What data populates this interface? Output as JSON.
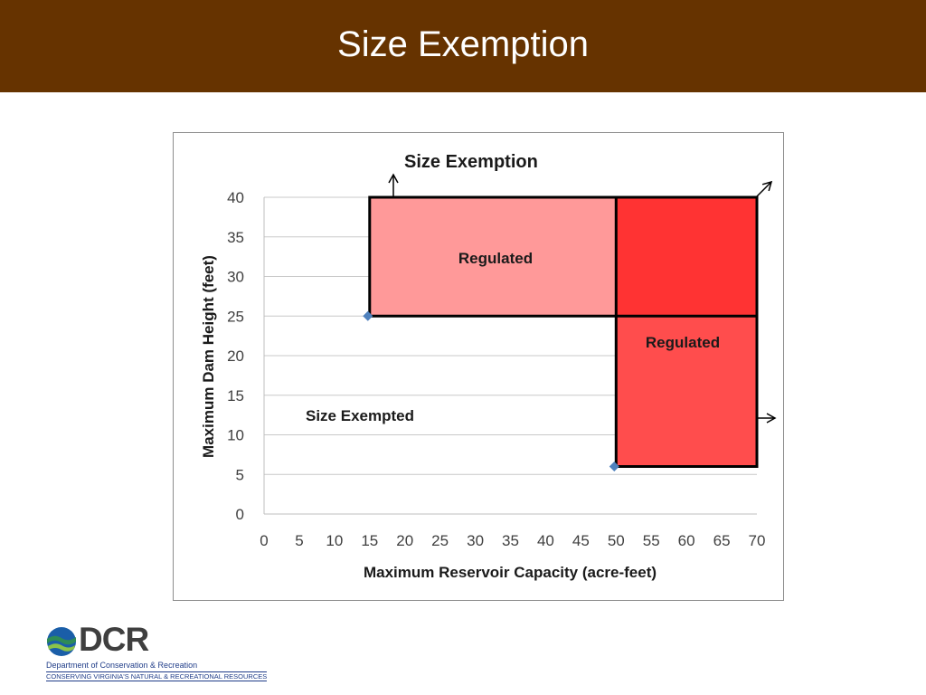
{
  "slide": {
    "title": "Size Exemption"
  },
  "chart_data": {
    "type": "scatter",
    "title": "Size Exemption",
    "xlabel": "Maximum Reservoir Capacity (acre-feet)",
    "ylabel": "Maximum Dam Height (feet)",
    "xlim": [
      0,
      70
    ],
    "ylim": [
      0,
      40
    ],
    "x_ticks": [
      0,
      5,
      10,
      15,
      20,
      25,
      30,
      35,
      40,
      45,
      50,
      55,
      60,
      65,
      70
    ],
    "y_ticks": [
      0,
      5,
      10,
      15,
      20,
      25,
      30,
      35,
      40
    ],
    "grid": "horizontal",
    "points": [
      {
        "x": 15,
        "y": 25
      },
      {
        "x": 50,
        "y": 6
      }
    ],
    "regions": [
      {
        "label": "Regulated",
        "x": [
          15,
          70
        ],
        "y": [
          25,
          40
        ],
        "color": "#ff9999"
      },
      {
        "label": "Regulated",
        "x": [
          50,
          70
        ],
        "y": [
          6,
          40
        ],
        "color": "#ff3333"
      }
    ],
    "annotations": [
      "Size Exempted"
    ],
    "colors": {
      "point": "#4f81bd",
      "region_light": "#ff9999",
      "region_mid": "#ff4d4d",
      "region_dark": "#ff3333"
    }
  },
  "logo": {
    "letters": "DCR",
    "line1": "Department of Conservation & Recreation",
    "line2": "CONSERVING VIRGINIA'S NATURAL & RECREATIONAL RESOURCES"
  }
}
